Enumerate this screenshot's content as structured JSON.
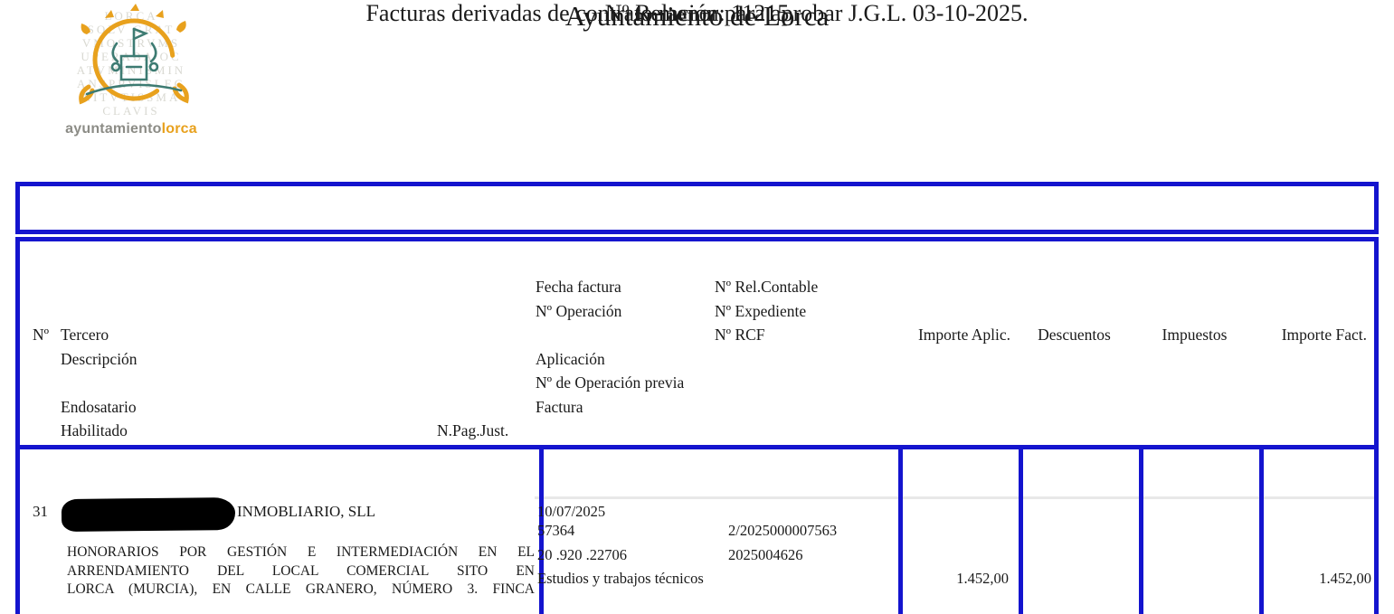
{
  "header": {
    "title": "Ayuntamiento de Lorca",
    "relation": "Nº Relación: 11215",
    "subtitle": "Facturas derivadas de contrato menor para aprobar J.G.L. 03-10-2025."
  },
  "logo": {
    "wordmark_gray": "ayuntamiento",
    "wordmark_orange": "lorca",
    "motto_lines": [
      "LORCA",
      "SOLV GRAT",
      "VMOSTRVMS",
      "UPERABA OC",
      "ATVMINISMIN",
      "ANSPRVISLEG",
      "NITVTISSMA",
      "CLAVIS"
    ],
    "colors": {
      "orange": "#e8a11d",
      "teal": "#3d7b72",
      "faded_gray": "#d9d9d2"
    }
  },
  "table": {
    "header_labels": {
      "num": "Nº",
      "tercero": "Tercero",
      "descripcion": "Descripción",
      "endosatario": "Endosatario",
      "habilitado": "Habilitado",
      "npagjust": "N.Pag.Just.",
      "fecha_factura": "Fecha factura",
      "num_operacion": "Nº Operación",
      "aplicacion": "Aplicación",
      "num_operacion_previa": "Nº de Operación previa",
      "factura": "Factura",
      "num_rel_contable": "Nº Rel.Contable",
      "num_expediente": "Nº Expediente",
      "num_rcf": "Nº RCF",
      "importe_aplic": "Importe Aplic.",
      "descuentos": "Descuentos",
      "impuestos": "Impuestos",
      "importe_fact": "Importe Fact."
    },
    "row": {
      "num": "31",
      "tercero_suffix": "INMOBLIARIO, SLL",
      "descripcion_lines": [
        "HONORARIOS POR GESTIÓN E INTERMEDIACIÓN EN EL",
        "ARRENDAMIENTO DEL LOCAL COMERCIAL SITO EN",
        "LORCA (MURCIA), EN CALLE GRANERO, NÚMERO 3. FINCA"
      ],
      "fecha_factura": "10/07/2025",
      "num_operacion": "57364",
      "num_rel_contable": "2/2025000007563",
      "aplicacion": "20 .920 .22706",
      "num_expediente": "2025004626",
      "aplicacion_desc": "Estudios y trabajos técnicos",
      "importe_aplic": "1.452,00",
      "importe_fact": "1.452,00"
    }
  },
  "colors": {
    "border_blue": "#1414ce",
    "row_divider_gray": "#e8e8e8"
  }
}
